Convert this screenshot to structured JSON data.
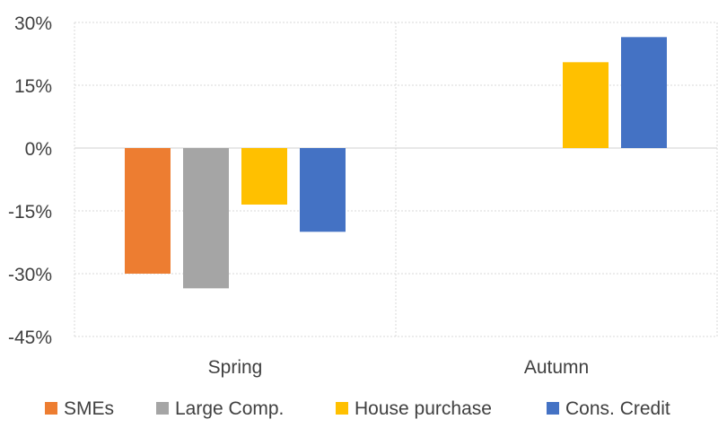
{
  "chart_data": {
    "type": "bar",
    "title": "",
    "xlabel": "",
    "ylabel": "",
    "categories": [
      "Spring",
      "Autumn"
    ],
    "ylim": [
      -45,
      30
    ],
    "yticks": [
      30,
      15,
      0,
      -15,
      -30,
      -45
    ],
    "ytick_labels": [
      "30%",
      "15%",
      "0%",
      "-15%",
      "-30%",
      "-45%"
    ],
    "grid": true,
    "legend_position": "bottom",
    "series": [
      {
        "name": "SMEs",
        "color": "#ED7D31",
        "values": [
          -30,
          null
        ]
      },
      {
        "name": "Large Comp.",
        "color": "#A5A5A5",
        "values": [
          -33.5,
          null
        ]
      },
      {
        "name": "House purchase",
        "color": "#FFC000",
        "values": [
          -13.5,
          20.5
        ]
      },
      {
        "name": "Cons. Credit",
        "color": "#4472C4",
        "values": [
          -20,
          26.5
        ]
      }
    ]
  }
}
